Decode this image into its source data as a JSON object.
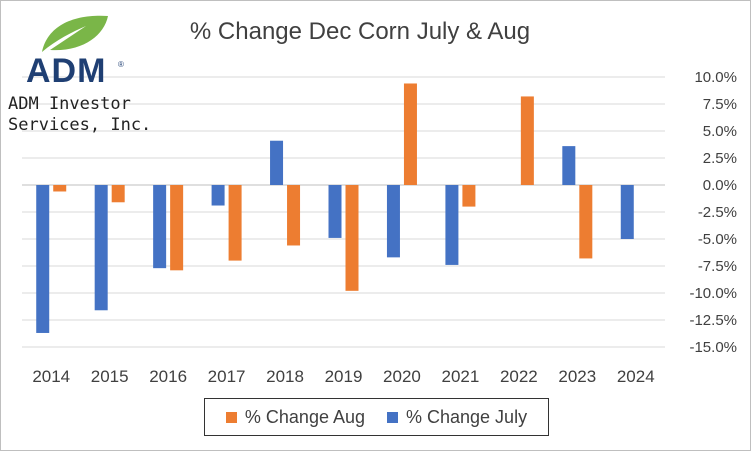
{
  "brand": {
    "logo_word": "ADM",
    "logo_tm": "®",
    "company_line1": "ADM Investor",
    "company_line2": "Services, Inc.",
    "leaf_color": "#7ab648",
    "word_color": "#1f3f73"
  },
  "chart_data": {
    "type": "bar",
    "title": "% Change Dec Corn July & Aug",
    "xlabel": "",
    "ylabel": "",
    "categories": [
      "2014",
      "2015",
      "2016",
      "2017",
      "2018",
      "2019",
      "2020",
      "2021",
      "2022",
      "2023",
      "2024"
    ],
    "series": [
      {
        "name": "% Change July",
        "color": "#4472c4",
        "values": [
          -13.7,
          -11.6,
          -7.7,
          -1.9,
          4.1,
          -4.9,
          -6.7,
          -7.4,
          null,
          3.6,
          -5.0
        ]
      },
      {
        "name": "% Change Aug",
        "color": "#ed7d31",
        "values": [
          -0.6,
          -1.6,
          -7.9,
          -7.0,
          -5.6,
          -9.8,
          9.4,
          -2.0,
          8.2,
          -6.8,
          null
        ]
      }
    ],
    "ylim": [
      -15,
      10
    ],
    "yticks": [
      10,
      7.5,
      5,
      2.5,
      0,
      -2.5,
      -5,
      -7.5,
      -10,
      -12.5,
      -15
    ],
    "ytick_labels": [
      "10.0%",
      "7.5%",
      "5.0%",
      "2.5%",
      "0.0%",
      "-2.5%",
      "-5.0%",
      "-7.5%",
      "-10.0%",
      "-12.5%",
      "-15.0%"
    ],
    "grid": true,
    "legend_position": "bottom",
    "legend_order": [
      "% Change Aug",
      "% Change July"
    ]
  }
}
